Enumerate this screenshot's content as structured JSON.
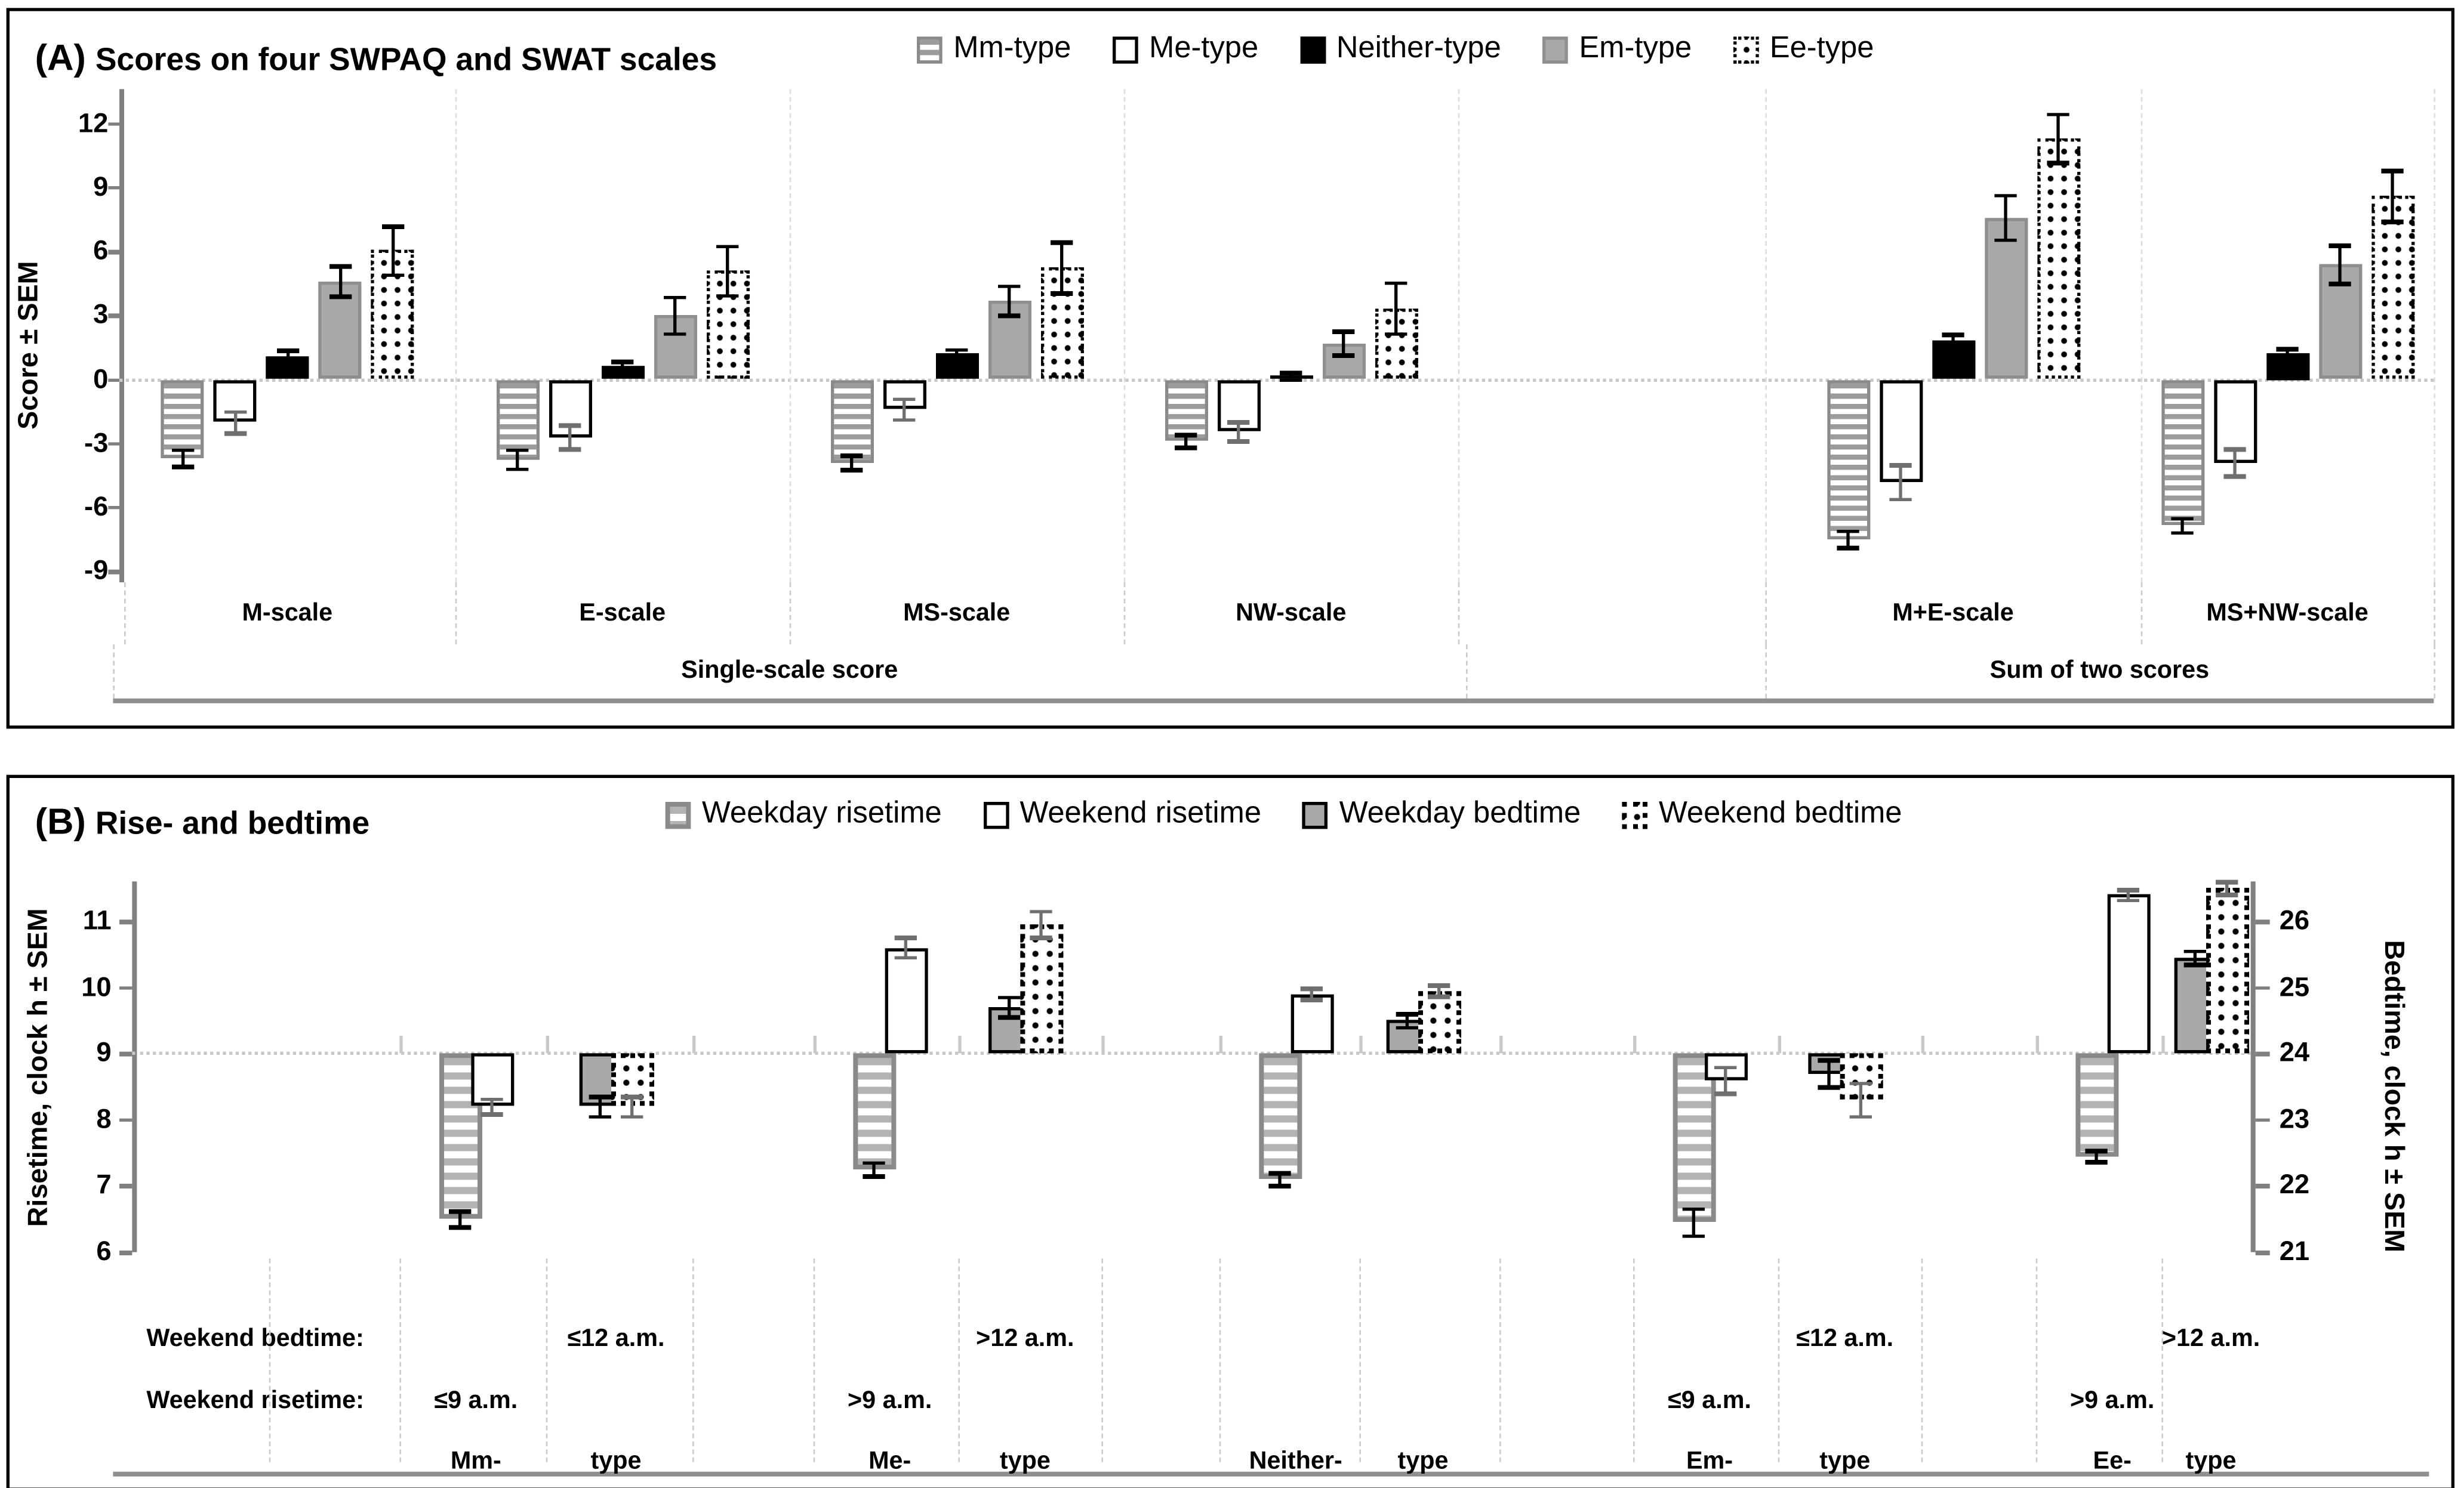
{
  "figure": {
    "background": "#ffffff",
    "border_color": "#000000"
  },
  "colors": {
    "bar_gray": "#a9a9a9",
    "stripe_gray": "#9c9c9c",
    "border_gray": "#8a8a8a",
    "axis_gray": "#808080",
    "grid_light": "#c8c8c8",
    "err_black": "#000000",
    "err_gray": "#6f6f6f",
    "black": "#000000",
    "white": "#ffffff"
  },
  "chart_data": [
    {
      "id": "A",
      "type": "bar",
      "title_prefix": "(A)",
      "title": "Scores on four SWPAQ and SWAT scales",
      "ylabel": "Score ± SEM",
      "ylim": [
        -9,
        12.8
      ],
      "yticks": [
        12,
        9,
        6,
        3,
        0,
        -3,
        -6,
        -9
      ],
      "grid": "zero-baseline dotted, light dashed category separators",
      "legend_position": "top",
      "categories": [
        "M-scale",
        "E-scale",
        "MS-scale",
        "NW-scale",
        "M+E-scale",
        "MS+NW-scale"
      ],
      "sections": [
        {
          "label": "Single-scale score",
          "category_indexes": [
            0,
            1,
            2,
            3
          ]
        },
        {
          "label": "Sum of two scores",
          "category_indexes": [
            4,
            5
          ]
        }
      ],
      "series": [
        {
          "name": "Mm-type",
          "style": "stripes",
          "err_color": "black",
          "values": [
            -3.7,
            -3.75,
            -3.9,
            -2.9,
            -7.5,
            -6.85
          ],
          "sem": [
            0.4,
            0.45,
            0.35,
            0.3,
            0.4,
            0.35
          ]
        },
        {
          "name": "Me-type",
          "style": "white",
          "err_color": "gray",
          "values": [
            -2.0,
            -2.7,
            -1.4,
            -2.45,
            -4.8,
            -3.9
          ],
          "sem": [
            0.5,
            0.55,
            0.5,
            0.45,
            0.8,
            0.65
          ]
        },
        {
          "name": "Neither-type",
          "style": "black",
          "err_color": "black",
          "values": [
            1.1,
            0.6,
            1.2,
            0.15,
            1.8,
            1.25
          ],
          "sem": [
            0.25,
            0.25,
            0.2,
            0.15,
            0.3,
            0.2
          ]
        },
        {
          "name": "Em-type",
          "style": "gray",
          "err_color": "black",
          "values": [
            4.6,
            3.0,
            3.7,
            1.7,
            7.6,
            5.4
          ],
          "sem": [
            0.7,
            0.85,
            0.7,
            0.55,
            1.05,
            0.9
          ]
        },
        {
          "name": "Ee-type",
          "style": "dots",
          "err_color": "black",
          "values": [
            6.05,
            5.1,
            5.25,
            3.35,
            11.3,
            8.6
          ],
          "sem": [
            1.15,
            1.15,
            1.2,
            1.2,
            1.15,
            1.2
          ]
        }
      ]
    },
    {
      "id": "B",
      "type": "bar",
      "title_prefix": "(B)",
      "title": "Rise- and bedtime",
      "ylabel_left": "Risetime, clock h ± SEM",
      "ylabel_right": "Bedtime, clock h ± SEM",
      "ylim_left": [
        6,
        11.6
      ],
      "yticks_left": [
        11,
        10,
        9,
        8,
        7,
        6
      ],
      "ylim_right": [
        21,
        26.6
      ],
      "yticks_right": [
        26,
        25,
        24,
        23,
        22,
        21
      ],
      "baseline_left": 9,
      "baseline_right": 24,
      "categories": [
        "Mm-",
        "Me-",
        "Neither-",
        "Em-",
        "Ee-"
      ],
      "category_suffix": "type",
      "row_headers": {
        "bedtime": "Weekend bedtime:",
        "risetime": "Weekend risetime:"
      },
      "bedtime_row": [
        "≤12 a.m.",
        ">12 a.m.",
        "",
        "≤12 a.m.",
        ">12 a.m."
      ],
      "risetime_row": [
        "≤9 a.m.",
        ">9 a.m.",
        "",
        "≤9 a.m.",
        ">9 a.m."
      ],
      "series": [
        {
          "name": "Weekday risetime",
          "style": "stripesB",
          "axis": "left",
          "col": "rise",
          "err_color": "black",
          "values": [
            6.5,
            7.25,
            7.1,
            6.45,
            7.45
          ],
          "sem": [
            0.12,
            0.1,
            0.1,
            0.2,
            0.08
          ]
        },
        {
          "name": "Weekend risetime",
          "style": "whiteB",
          "axis": "left",
          "col": "rise",
          "err_color": "gray",
          "values": [
            8.2,
            10.6,
            9.9,
            8.6,
            11.4
          ],
          "sem": [
            0.11,
            0.15,
            0.08,
            0.2,
            0.08
          ]
        },
        {
          "name": "Weekday bedtime",
          "style": "grayB",
          "axis": "right",
          "col": "bed",
          "err_color": "black",
          "values": [
            23.2,
            24.7,
            24.5,
            23.7,
            25.45
          ],
          "sem": [
            0.15,
            0.15,
            0.1,
            0.2,
            0.1
          ]
        },
        {
          "name": "Weekend bedtime",
          "style": "dotsB",
          "axis": "right",
          "col": "bed",
          "err_color": "gray",
          "values": [
            23.2,
            25.95,
            24.95,
            23.3,
            26.5
          ],
          "sem": [
            0.15,
            0.2,
            0.08,
            0.25,
            0.1
          ]
        }
      ]
    }
  ]
}
